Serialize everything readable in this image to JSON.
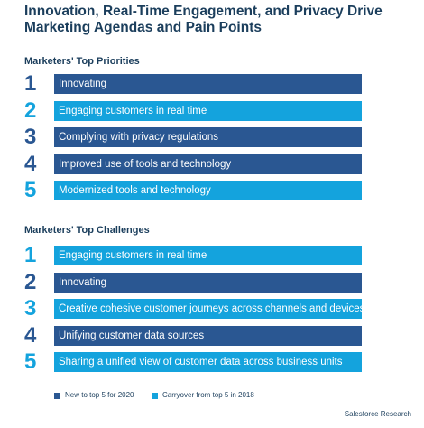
{
  "title": "Innovation, Real-Time Engagement, and Privacy Drive Marketing Agendas and Pain Points",
  "colors": {
    "new": "#2a5792",
    "carryover": "#14a3dd",
    "text": "#1b3e5c"
  },
  "priorities": {
    "heading": "Marketers' Top Priorities",
    "items": [
      {
        "rank": "1",
        "label": "Innovating",
        "kind": "new"
      },
      {
        "rank": "2",
        "label": "Engaging customers in real time",
        "kind": "carryover"
      },
      {
        "rank": "3",
        "label": "Complying with privacy regulations",
        "kind": "new"
      },
      {
        "rank": "4",
        "label": "Improved use of tools and technology",
        "kind": "new"
      },
      {
        "rank": "5",
        "label": "Modernized tools and technology",
        "kind": "carryover"
      }
    ]
  },
  "challenges": {
    "heading": "Marketers' Top Challenges",
    "items": [
      {
        "rank": "1",
        "label": "Engaging customers in real time",
        "kind": "carryover"
      },
      {
        "rank": "2",
        "label": "Innovating",
        "kind": "new"
      },
      {
        "rank": "3",
        "label": "Creative cohesive customer journeys across channels and devices",
        "kind": "carryover"
      },
      {
        "rank": "4",
        "label": "Unifying customer data sources",
        "kind": "new"
      },
      {
        "rank": "5",
        "label": "Sharing a unified view of customer data across business units",
        "kind": "carryover"
      }
    ]
  },
  "legend": {
    "new_label": "New to top 5 for 2020",
    "carryover_label": "Carryover from top 5 in 2018"
  },
  "footer": "Salesforce Research"
}
